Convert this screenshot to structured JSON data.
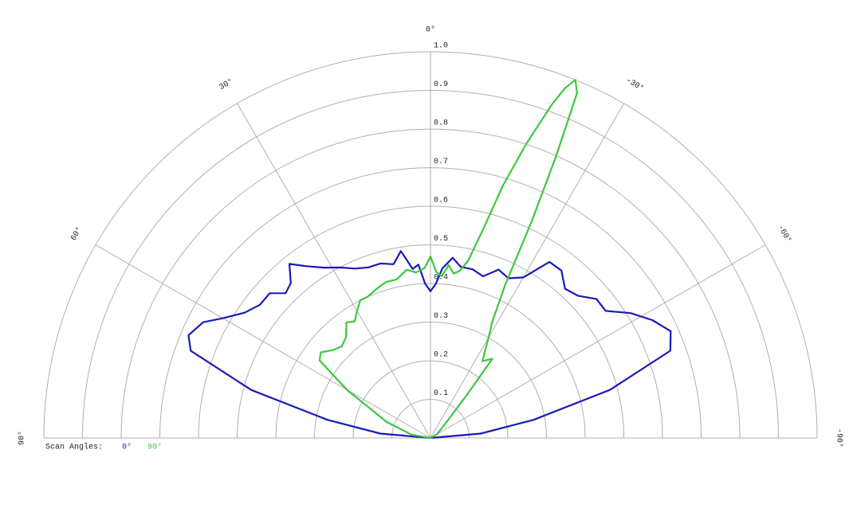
{
  "chart_data": {
    "type": "polar",
    "legend_title": "Scan Angles:",
    "rlim": [
      0,
      1
    ],
    "rticks": [
      0.1,
      0.2,
      0.3,
      0.4,
      0.5,
      0.6,
      0.7,
      0.8,
      0.9,
      {
        "value": 1,
        "label": "1.0"
      }
    ],
    "thetalim": [
      -90,
      90
    ],
    "thetaticks": [
      {
        "value": 90,
        "label": "90°"
      },
      {
        "value": 60,
        "label": "60°"
      },
      {
        "value": 30,
        "label": "30°"
      },
      {
        "value": 0,
        "label": "0°"
      },
      {
        "value": -30,
        "label": "-30°"
      },
      {
        "value": -60,
        "label": "-60°"
      },
      {
        "value": -90,
        "label": "-90°"
      }
    ],
    "grid": true,
    "series": [
      {
        "name": "0°",
        "color": "#1a1ab8",
        "theta": [
          90,
          85,
          80,
          75,
          70,
          67,
          63,
          60,
          56,
          52,
          48,
          45,
          42,
          39,
          36,
          32,
          28,
          24,
          20,
          16,
          12,
          9,
          6,
          4,
          2,
          0,
          -2,
          -4,
          -7,
          -10,
          -14,
          -18,
          -22,
          -26,
          -30,
          -34,
          -38,
          -42,
          -46,
          -50,
          -54,
          -58,
          -62,
          -66,
          -70,
          -75,
          -80,
          -85,
          -90
        ],
        "values": [
          0,
          0.13,
          0.27,
          0.48,
          0.66,
          0.68,
          0.66,
          0.62,
          0.58,
          0.56,
          0.56,
          0.53,
          0.54,
          0.58,
          0.55,
          0.52,
          0.5,
          0.48,
          0.47,
          0.47,
          0.46,
          0.49,
          0.44,
          0.45,
          0.4,
          0.38,
          0.4,
          0.44,
          0.47,
          0.45,
          0.45,
          0.44,
          0.47,
          0.46,
          0.48,
          0.55,
          0.55,
          0.52,
          0.53,
          0.56,
          0.56,
          0.61,
          0.65,
          0.68,
          0.66,
          0.48,
          0.27,
          0.13,
          0
        ]
      },
      {
        "name": "90°",
        "color": "#3cc83c",
        "theta": [
          90,
          80,
          70,
          60,
          55,
          52,
          48,
          44,
          40,
          36,
          33,
          30,
          27,
          24,
          20,
          16,
          12,
          8,
          5,
          2,
          0,
          -2,
          -4,
          -6,
          -8,
          -10,
          -12,
          -14,
          -16,
          -18,
          -20,
          -21,
          -22,
          -23,
          -24,
          -25,
          -26,
          -28,
          -30,
          -34,
          -38,
          -40,
          -45,
          -60,
          -90
        ],
        "values": [
          0,
          0.05,
          0.12,
          0.25,
          0.35,
          0.36,
          0.34,
          0.33,
          0.34,
          0.37,
          0.36,
          0.38,
          0.4,
          0.4,
          0.41,
          0.42,
          0.42,
          0.44,
          0.43,
          0.44,
          0.47,
          0.43,
          0.42,
          0.45,
          0.43,
          0.44,
          0.47,
          0.55,
          0.68,
          0.8,
          0.92,
          0.97,
          1.0,
          0.97,
          0.8,
          0.62,
          0.44,
          0.34,
          0.3,
          0.24,
          0.26,
          0.15,
          0.06,
          0.02,
          0
        ]
      }
    ]
  }
}
